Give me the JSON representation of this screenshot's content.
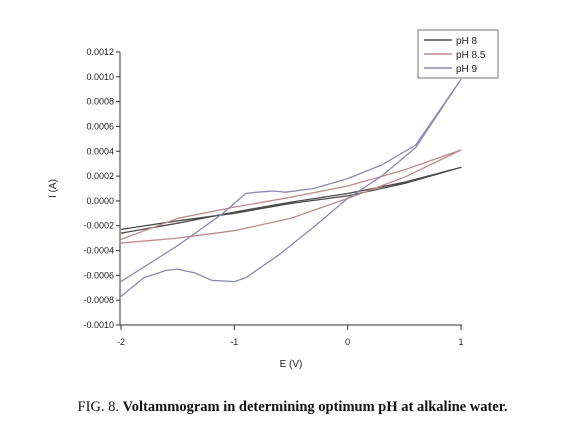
{
  "chart_data": {
    "type": "line",
    "title": "",
    "xlabel": "E (V)",
    "ylabel": "I (A)",
    "xlim": [
      -2,
      1
    ],
    "ylim": [
      -0.001,
      0.0012
    ],
    "x_ticks": [
      "-2",
      "-1",
      "0",
      "1"
    ],
    "y_ticks": [
      "0.0012",
      "0.0010",
      "0.0008",
      "0.0006",
      "0.0004",
      "0.0002",
      "0.0000",
      "-0.0002",
      "-0.0004",
      "-0.0006",
      "-0.0008",
      "-0.0010"
    ],
    "legend_position": "top-right",
    "series": [
      {
        "name": "pH 8",
        "color": "#4a4a4a",
        "x": [
          -2,
          -1.5,
          -1,
          -0.5,
          0,
          0.5,
          1,
          0.5,
          0,
          -0.5,
          -1,
          -1.5,
          -2
        ],
        "y": [
          -0.00023,
          -0.00016,
          -0.0001,
          -2e-05,
          4e-05,
          0.00014,
          0.00027,
          0.00015,
          6e-05,
          -1e-05,
          -9e-05,
          -0.00018,
          -0.00026
        ]
      },
      {
        "name": "pH 8.5",
        "color": "#c08a8a",
        "x": [
          -2,
          -1.5,
          -1,
          -0.5,
          0,
          0.5,
          1,
          0.5,
          0,
          -0.5,
          -1,
          -1.5,
          -2
        ],
        "y": [
          -0.00034,
          -0.0003,
          -0.00024,
          -0.00014,
          2e-05,
          0.00019,
          0.00041,
          0.00025,
          0.00012,
          3e-05,
          -5e-05,
          -0.00014,
          -0.00031
        ]
      },
      {
        "name": "pH 9",
        "color": "#8a8ab2",
        "x": [
          -2,
          -1.8,
          -1.6,
          -1.5,
          -1.35,
          -1.2,
          -1,
          -0.9,
          -0.6,
          -0.3,
          0,
          0.3,
          0.6,
          1,
          0.6,
          0.3,
          0,
          -0.3,
          -0.55,
          -0.65,
          -0.8,
          -0.9,
          -1.1,
          -1.5,
          -2
        ],
        "y": [
          -0.00077,
          -0.00062,
          -0.00056,
          -0.00055,
          -0.00058,
          -0.00064,
          -0.00065,
          -0.00062,
          -0.00043,
          -0.00021,
          2e-05,
          0.0002,
          0.00043,
          0.00098,
          0.00045,
          0.00029,
          0.00018,
          0.0001,
          7e-05,
          8e-05,
          7e-05,
          6e-05,
          -0.0001,
          -0.00036,
          -0.00065
        ]
      }
    ]
  },
  "caption": {
    "prefix": "FIG. 8. ",
    "text": "Voltammogram in determining optimum pH at alkaline water."
  }
}
